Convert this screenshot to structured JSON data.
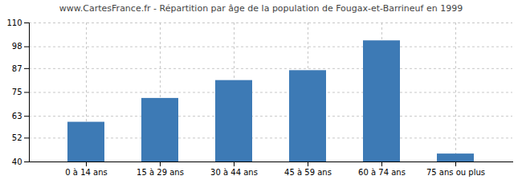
{
  "chart_data": {
    "type": "bar",
    "title": "www.CartesFrance.fr - Répartition par âge de la population de Fougax-et-Barrineuf en 1999",
    "categories": [
      "0 à 14 ans",
      "15 à 29 ans",
      "30 à 44 ans",
      "45 à 59 ans",
      "60 à 74 ans",
      "75 ans ou plus"
    ],
    "values": [
      60,
      72,
      81,
      86,
      101,
      44
    ],
    "color": "#3d7ab5",
    "ylim": [
      40,
      110
    ],
    "yticks": [
      40,
      52,
      63,
      75,
      87,
      98,
      110
    ],
    "grid": true
  }
}
